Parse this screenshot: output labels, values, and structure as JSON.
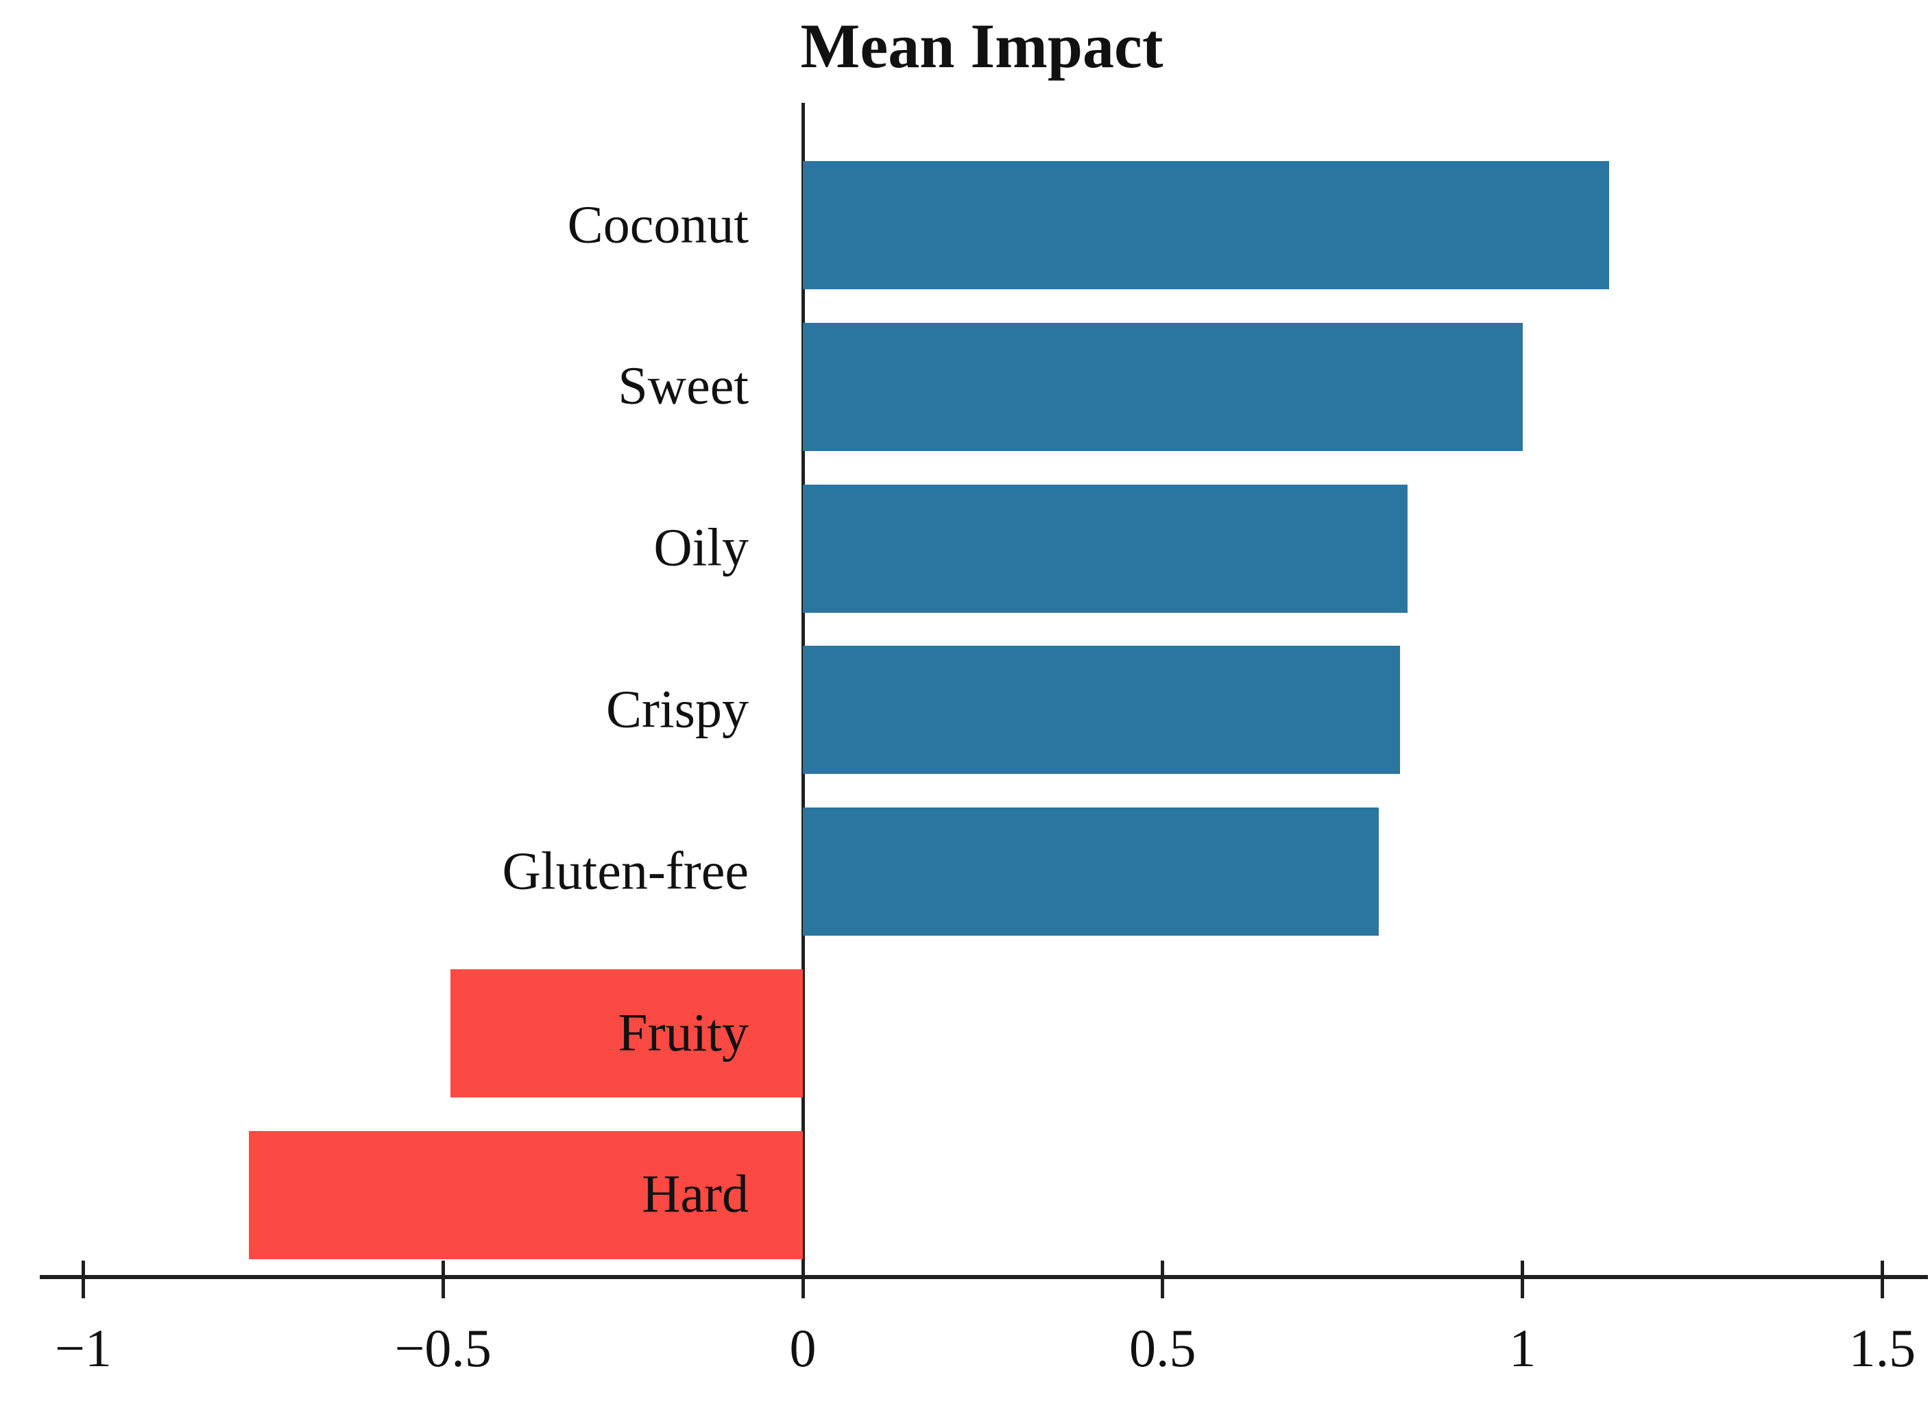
{
  "chart_data": {
    "type": "bar",
    "orientation": "horizontal",
    "title": "Mean Impact",
    "categories": [
      "Coconut",
      "Sweet",
      "Oily",
      "Crispy",
      "Gluten-free",
      "Fruity",
      "Hard"
    ],
    "values": [
      1.12,
      1.0,
      0.84,
      0.83,
      0.8,
      -0.49,
      -0.77
    ],
    "x_ticks": [
      {
        "value": -1,
        "label": "−1"
      },
      {
        "value": -0.5,
        "label": "−0.5"
      },
      {
        "value": 0,
        "label": "0"
      },
      {
        "value": 0.5,
        "label": "0.5"
      },
      {
        "value": 1,
        "label": "1"
      },
      {
        "value": 1.5,
        "label": "1.5"
      }
    ],
    "xlim": [
      -1.06,
      1.56
    ],
    "xlabel": "",
    "ylabel": "",
    "grid": false,
    "legend": false,
    "positive_color": "#2b76a0",
    "negative_color": "#fb4a43",
    "axis_color": "#1f1f1f",
    "text_color": "#111111",
    "background_color": "#ffffff"
  }
}
